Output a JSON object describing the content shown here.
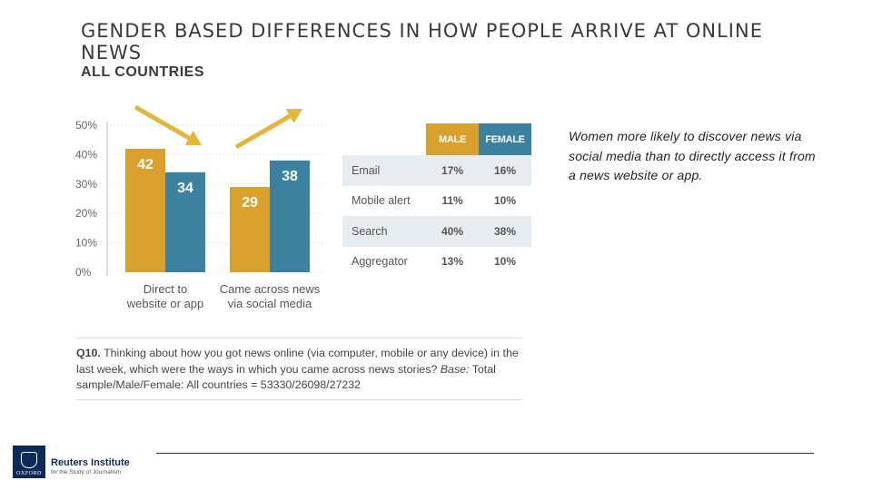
{
  "header": {
    "title": "GENDER BASED DIFFERENCES IN HOW PEOPLE ARRIVE AT ONLINE NEWS",
    "subtitle": "ALL COUNTRIES"
  },
  "chart_data": {
    "type": "bar",
    "categories": [
      "Direct to website or app",
      "Came across news via social media"
    ],
    "category_lines": [
      [
        "Direct to",
        "website or app"
      ],
      [
        "Came across news",
        "via social media"
      ]
    ],
    "series": [
      {
        "name": "MALE",
        "values": [
          42,
          29
        ],
        "color": "#d9a02b"
      },
      {
        "name": "FEMALE",
        "values": [
          34,
          38
        ],
        "color": "#3a82a0"
      }
    ],
    "ylim": [
      0,
      50
    ],
    "yticks": [
      "0%",
      "10%",
      "20%",
      "30%",
      "40%",
      "50%"
    ],
    "grid": true,
    "annotations": [
      "arrow-down-right",
      "arrow-up-right"
    ],
    "arrow_color": "#e3b63a"
  },
  "table": {
    "headers": [
      "MALE",
      "FEMALE"
    ],
    "rows": [
      {
        "label": "Email",
        "male": "17%",
        "female": "16%"
      },
      {
        "label": "Mobile alert",
        "male": "11%",
        "female": "10%"
      },
      {
        "label": "Search",
        "male": "40%",
        "female": "38%"
      },
      {
        "label": "Aggregator",
        "male": "13%",
        "female": "10%"
      }
    ]
  },
  "note": "Women more likely to discover news via social media than to directly access it from a news website or app.",
  "question": {
    "prefix": "Q10.",
    "text": " Thinking about how you got news online (via computer, mobile or any device) in the last week, which were the ways in which you came across news stories? ",
    "base_label": "Base:",
    "base_text": " Total sample/Male/Female: All countries = 53330/26098/27232"
  },
  "logo": {
    "crest_text": "OXFORD",
    "name": "Reuters Institute",
    "tagline": "for the Study of Journalism"
  }
}
